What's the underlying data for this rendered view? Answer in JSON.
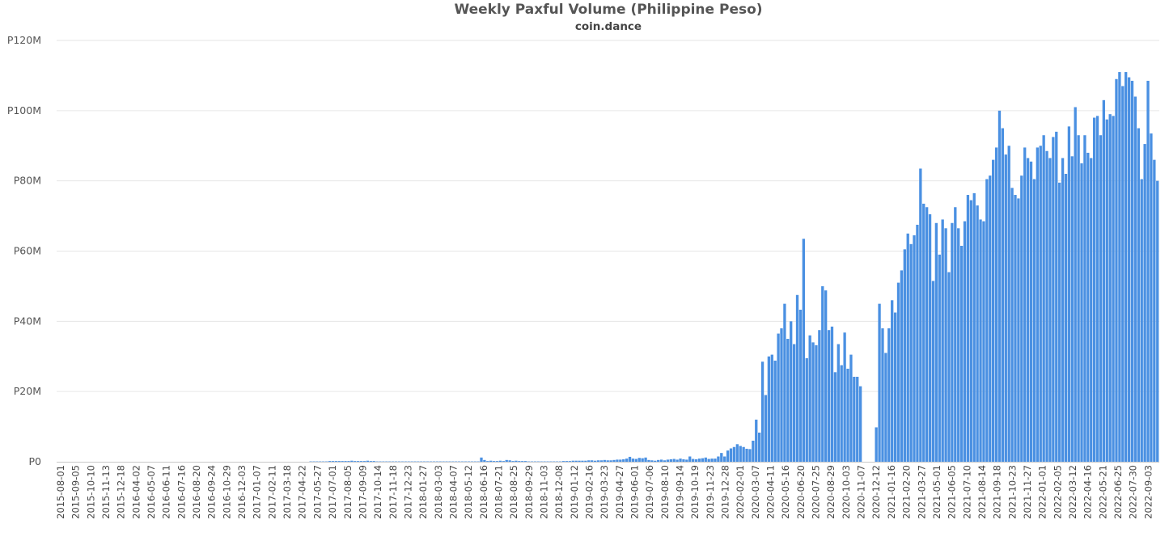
{
  "chart_data": {
    "type": "bar",
    "title": "Weekly Paxful Volume (Philippine Peso)",
    "subtitle": "coin.dance",
    "xlabel": "",
    "ylabel": "",
    "bar_color": "#4a90e2",
    "grid": true,
    "legend": "none",
    "y_ticks": [
      {
        "value": 0,
        "label": "P0"
      },
      {
        "value": 20,
        "label": "P20M"
      },
      {
        "value": 40,
        "label": "P40M"
      },
      {
        "value": 60,
        "label": "P60M"
      },
      {
        "value": 80,
        "label": "P80M"
      },
      {
        "value": 100,
        "label": "P100M"
      },
      {
        "value": 120,
        "label": "P120M"
      }
    ],
    "ylim": [
      0,
      120
    ],
    "y_unit": "millions of Philippine Peso",
    "x_ticks": [
      "2015-08-01",
      "2015-09-05",
      "2015-10-10",
      "2015-11-13",
      "2015-12-18",
      "2016-04-02",
      "2016-05-07",
      "2016-06-11",
      "2016-07-16",
      "2016-08-20",
      "2016-09-24",
      "2016-10-29",
      "2016-12-03",
      "2017-01-07",
      "2017-02-11",
      "2017-03-18",
      "2017-04-22",
      "2017-05-27",
      "2017-07-01",
      "2017-08-05",
      "2017-09-09",
      "2017-10-14",
      "2017-11-18",
      "2017-12-23",
      "2018-01-27",
      "2018-03-03",
      "2018-04-07",
      "2018-05-12",
      "2018-06-16",
      "2018-07-21",
      "2018-08-25",
      "2018-09-29",
      "2018-11-03",
      "2018-12-08",
      "2019-01-12",
      "2019-02-16",
      "2019-03-23",
      "2019-04-27",
      "2019-06-01",
      "2019-07-06",
      "2019-08-10",
      "2019-09-14",
      "2019-10-19",
      "2019-11-23",
      "2019-12-28",
      "2020-02-01",
      "2020-03-07",
      "2020-04-11",
      "2020-05-16",
      "2020-06-20",
      "2020-07-25",
      "2020-08-29",
      "2020-10-03",
      "2020-11-07",
      "2020-12-12",
      "2021-01-16",
      "2021-02-20",
      "2021-03-27",
      "2021-05-01",
      "2021-06-05",
      "2021-07-10",
      "2021-08-14",
      "2021-09-18",
      "2021-10-23",
      "2021-11-27",
      "2022-01-01",
      "2022-02-05",
      "2022-03-12",
      "2022-04-16",
      "2022-05-21",
      "2022-06-25",
      "2022-07-30",
      "2022-09-03"
    ],
    "values": [
      0,
      0,
      0,
      0,
      0,
      0,
      0,
      0,
      0,
      0,
      0,
      0,
      0,
      0,
      0,
      0,
      0,
      0,
      0,
      0,
      0,
      0,
      0,
      0,
      0,
      0,
      0,
      0,
      0,
      0,
      0,
      0,
      0,
      0,
      0,
      0,
      0,
      0,
      0,
      0,
      0,
      0,
      0,
      0,
      0,
      0,
      0,
      0,
      0,
      0,
      0,
      0,
      0,
      0,
      0,
      0,
      0,
      0,
      0,
      0,
      0,
      0,
      0,
      0,
      0,
      0,
      0,
      0,
      0,
      0,
      0,
      0,
      0,
      0,
      0,
      0,
      0,
      0,
      0,
      0,
      0.1,
      0.1,
      0.1,
      0.1,
      0.1,
      0.1,
      0.2,
      0.2,
      0.2,
      0.2,
      0.2,
      0.2,
      0.2,
      0.3,
      0.2,
      0.2,
      0.2,
      0.2,
      0.3,
      0.2,
      0.2,
      0.1,
      0.1,
      0.1,
      0.1,
      0.1,
      0.1,
      0.1,
      0.1,
      0.1,
      0.1,
      0.1,
      0.1,
      0.1,
      0.1,
      0.1,
      0.1,
      0.1,
      0.1,
      0.1,
      0.1,
      0.1,
      0.1,
      0.1,
      0.1,
      0.1,
      0.1,
      0.1,
      0.1,
      0.1,
      0.1,
      0.1,
      0.1,
      0.1,
      1.2,
      0.5,
      0.2,
      0.3,
      0.2,
      0.2,
      0.3,
      0.2,
      0.5,
      0.4,
      0.2,
      0.3,
      0.2,
      0.2,
      0.2,
      0.1,
      0.1,
      0.1,
      0.1,
      0.1,
      0.1,
      0.1,
      0.1,
      0.1,
      0.1,
      0.1,
      0.2,
      0.2,
      0.2,
      0.3,
      0.3,
      0.3,
      0.3,
      0.3,
      0.4,
      0.4,
      0.3,
      0.4,
      0.4,
      0.5,
      0.4,
      0.4,
      0.5,
      0.6,
      0.6,
      0.7,
      0.9,
      1.4,
      0.9,
      0.8,
      1.1,
      1.0,
      1.2,
      0.5,
      0.4,
      0.3,
      0.5,
      0.6,
      0.4,
      0.6,
      0.7,
      0.8,
      0.6,
      0.9,
      0.7,
      0.6,
      1.5,
      0.8,
      0.7,
      0.9,
      1.0,
      1.2,
      0.8,
      0.9,
      0.9,
      1.5,
      2.5,
      1.5,
      3.2,
      3.8,
      4.2,
      5.0,
      4.5,
      4.2,
      3.7,
      3.6,
      6.0,
      12.0,
      8.3,
      28.5,
      19.0,
      30.0,
      30.5,
      28.8,
      36.5,
      38.0,
      45.0,
      35.0,
      40.0,
      33.5,
      47.5,
      43.3,
      63.5,
      29.5,
      36.0,
      34.0,
      33.2,
      37.5,
      50.0,
      48.8,
      37.5,
      38.5,
      25.5,
      33.5,
      27.5,
      36.8,
      26.5,
      30.5,
      24.2,
      24.2,
      21.5,
      0,
      0,
      0,
      0,
      9.8,
      45.0,
      38.0,
      31.0,
      38.0,
      46.0,
      42.5,
      51.0,
      54.5,
      60.5,
      65.0,
      62.0,
      64.5,
      67.5,
      83.5,
      73.5,
      72.5,
      70.5,
      51.5,
      68.0,
      59.0,
      69.0,
      66.5,
      54.0,
      68.0,
      72.5,
      66.5,
      61.5,
      68.5,
      76.0,
      74.5,
      76.5,
      73.0,
      69.0,
      68.5,
      80.5,
      81.5,
      86.0,
      89.5,
      100.0,
      95.0,
      87.5,
      90.0,
      78.0,
      76.0,
      75.0,
      81.5,
      89.5,
      86.5,
      85.5,
      80.5,
      89.5,
      90.0,
      93.0,
      88.5,
      86.5,
      92.5,
      94.0,
      79.5,
      86.5,
      82.0,
      95.5,
      87.0,
      101.0,
      93.0,
      85.0,
      93.0,
      88.0,
      86.5,
      98.0,
      98.5,
      93.0,
      103.0,
      97.5,
      99.0,
      98.5,
      109.0,
      111.0,
      107.0,
      111.0,
      109.5,
      108.5,
      104.0,
      95.0,
      80.5,
      90.5,
      108.5,
      93.5,
      86.0,
      80.0
    ]
  }
}
